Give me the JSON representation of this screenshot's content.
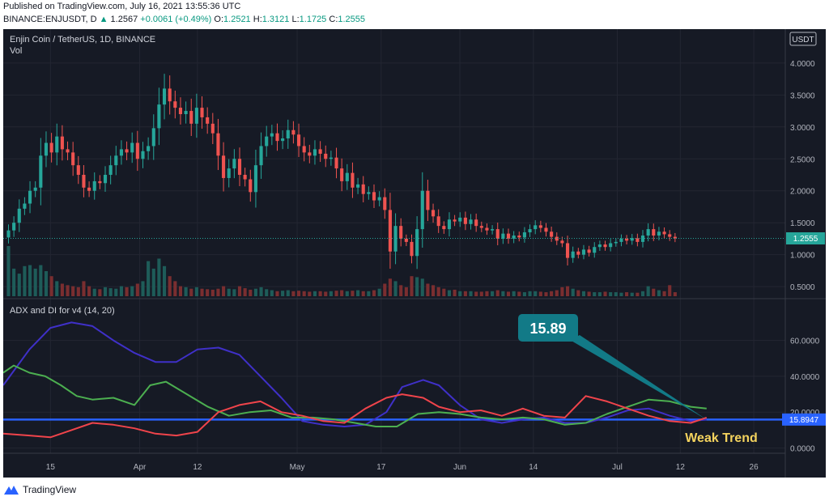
{
  "header": {
    "published": "Published on TradingView.com, July 16, 2021 13:55:36 UTC",
    "symbol": "BINANCE:ENJUSDT, D",
    "last": "1.2567",
    "change": "+0.0061 (+0.49%)",
    "o_label": "O:",
    "o_val": "1.2521",
    "h_label": "H:",
    "h_val": "1.3121",
    "l_label": "L:",
    "l_val": "1.1725",
    "c_label": "C:",
    "c_val": "1.2555"
  },
  "price_pane": {
    "title": "Enjin Coin / TetherUS, 1D, BINANCE",
    "vol_label": "Vol",
    "currency": "USDT",
    "last_price_label": "1.2555"
  },
  "adx_pane": {
    "title": "ADX and DI for v4 (14, 20)",
    "adx_value_label": "15.8947",
    "callout": "15.89",
    "annotation": "Weak Trend"
  },
  "footer": {
    "brand": "TradingView"
  },
  "colors": {
    "background": "#161a25",
    "up": "#26a69a",
    "down": "#ef5350",
    "adx": "#3f30c8",
    "di_plus": "#4caf50",
    "di_minus": "#f0444b",
    "threshold": "#2962ff",
    "callout": "#127a87",
    "annotation": "#f4d35e"
  },
  "chart_data": [
    {
      "type": "candlestick",
      "title": "Enjin Coin / TetherUS, 1D, BINANCE",
      "ylim": [
        0.35,
        4.15
      ],
      "y_ticks": [
        "4.0000",
        "3.5000",
        "3.0000",
        "2.5000",
        "2.0000",
        "1.5000",
        "1.0000",
        "0.5000"
      ],
      "y_tick_values": [
        4.0,
        3.5,
        3.0,
        2.5,
        2.0,
        1.5,
        1.0,
        0.5
      ],
      "x_ticks": [
        "15",
        "Apr",
        "12",
        "May",
        "17",
        "Jun",
        "14",
        "Jul",
        "12",
        "26"
      ],
      "x_tick_days": [
        14,
        31,
        42,
        61,
        77,
        92,
        106,
        122,
        134,
        148
      ],
      "x_range_days": [
        5,
        154
      ],
      "start_date": "2021-03-06",
      "last_price": 1.2555,
      "close": [
        1.38,
        1.5,
        1.72,
        1.8,
        2.0,
        2.05,
        2.55,
        2.75,
        2.6,
        2.85,
        2.65,
        2.6,
        2.4,
        2.25,
        2.05,
        2.0,
        2.15,
        2.12,
        2.25,
        2.4,
        2.55,
        2.65,
        2.6,
        2.75,
        2.5,
        2.62,
        2.7,
        2.98,
        3.35,
        3.6,
        3.4,
        3.3,
        3.2,
        3.25,
        3.05,
        3.3,
        3.15,
        3.05,
        2.9,
        2.55,
        2.2,
        2.35,
        2.5,
        2.25,
        2.18,
        1.98,
        2.4,
        2.7,
        2.85,
        2.9,
        2.78,
        2.82,
        2.95,
        2.88,
        2.7,
        2.6,
        2.55,
        2.65,
        2.58,
        2.5,
        2.52,
        2.35,
        2.15,
        2.28,
        2.05,
        2.1,
        1.95,
        1.98,
        1.85,
        1.9,
        1.7,
        1.05,
        1.45,
        1.25,
        1.2,
        0.98,
        1.4,
        2.0,
        1.7,
        1.6,
        1.45,
        1.4,
        1.55,
        1.52,
        1.58,
        1.48,
        1.55,
        1.45,
        1.42,
        1.38,
        1.4,
        1.25,
        1.33,
        1.25,
        1.3,
        1.27,
        1.35,
        1.4,
        1.46,
        1.42,
        1.36,
        1.28,
        1.22,
        1.18,
        0.95,
        1.05,
        1.0,
        1.08,
        1.03,
        1.12,
        1.16,
        1.12,
        1.18,
        1.2,
        1.25,
        1.22,
        1.26,
        1.2,
        1.3,
        1.4,
        1.3,
        1.36,
        1.32,
        1.28,
        1.2555
      ],
      "volume": [
        1.0,
        0.55,
        0.45,
        0.6,
        0.62,
        0.55,
        0.62,
        0.5,
        0.4,
        0.3,
        0.25,
        0.22,
        0.2,
        0.18,
        0.3,
        0.2,
        0.15,
        0.14,
        0.18,
        0.16,
        0.15,
        0.2,
        0.18,
        0.2,
        0.25,
        0.3,
        0.7,
        0.55,
        0.75,
        0.6,
        0.4,
        0.3,
        0.2,
        0.18,
        0.15,
        0.18,
        0.15,
        0.14,
        0.13,
        0.15,
        0.2,
        0.15,
        0.14,
        0.2,
        0.16,
        0.13,
        0.15,
        0.18,
        0.14,
        0.12,
        0.1,
        0.11,
        0.12,
        0.1,
        0.11,
        0.1,
        0.09,
        0.1,
        0.1,
        0.09,
        0.1,
        0.11,
        0.12,
        0.1,
        0.11,
        0.12,
        0.1,
        0.1,
        0.12,
        0.15,
        0.25,
        0.35,
        0.3,
        0.22,
        0.18,
        0.4,
        0.38,
        0.35,
        0.25,
        0.22,
        0.18,
        0.15,
        0.12,
        0.13,
        0.1,
        0.1,
        0.1,
        0.09,
        0.09,
        0.1,
        0.1,
        0.12,
        0.1,
        0.09,
        0.1,
        0.09,
        0.08,
        0.1,
        0.1,
        0.09,
        0.08,
        0.1,
        0.12,
        0.18,
        0.2,
        0.15,
        0.12,
        0.1,
        0.09,
        0.08,
        0.08,
        0.09,
        0.08,
        0.08,
        0.07,
        0.08,
        0.07,
        0.07,
        0.1,
        0.2,
        0.15,
        0.12,
        0.1,
        0.22,
        0.08
      ]
    },
    {
      "type": "line",
      "title": "ADX and DI for v4 (14, 20)",
      "ylim": [
        -2,
        72
      ],
      "y_ticks": [
        "60.0000",
        "40.0000",
        "20.0000",
        "0.0000"
      ],
      "y_tick_values": [
        60,
        40,
        20,
        0
      ],
      "threshold": 15.8947,
      "x_range_days": [
        5,
        154
      ],
      "series": [
        {
          "name": "ADX",
          "x": [
            5,
            10,
            14,
            18,
            22,
            26,
            30,
            34,
            38,
            42,
            46,
            50,
            54,
            58,
            62,
            66,
            70,
            74,
            78,
            81,
            85,
            88,
            92,
            96,
            100,
            104,
            108,
            112,
            116,
            120,
            124,
            128,
            132,
            136,
            139
          ],
          "y": [
            35,
            55,
            67,
            70,
            68,
            60,
            53,
            48,
            48,
            55,
            56,
            52,
            40,
            28,
            15,
            13,
            12,
            13,
            20,
            34,
            38,
            35,
            24,
            16,
            14,
            16,
            17,
            14,
            14,
            17,
            21,
            22,
            18,
            15,
            15.89
          ]
        },
        {
          "name": "+DI",
          "x": [
            5,
            7,
            10,
            13,
            16,
            19,
            22,
            26,
            30,
            33,
            36,
            40,
            44,
            48,
            52,
            56,
            60,
            64,
            68,
            72,
            76,
            80,
            84,
            88,
            92,
            96,
            100,
            104,
            108,
            112,
            116,
            120,
            124,
            128,
            132,
            136,
            139
          ],
          "y": [
            42,
            46,
            42,
            40,
            35,
            29,
            27,
            28,
            24,
            35,
            37,
            30,
            23,
            18,
            20,
            21,
            17,
            17,
            16,
            14,
            12,
            12,
            19,
            20,
            19,
            17,
            16,
            17,
            16,
            13,
            14,
            19,
            23,
            27,
            26,
            23,
            22
          ]
        },
        {
          "name": "-DI",
          "x": [
            5,
            10,
            14,
            18,
            22,
            26,
            30,
            34,
            38,
            42,
            46,
            50,
            54,
            58,
            62,
            66,
            70,
            74,
            78,
            81,
            85,
            88,
            92,
            96,
            100,
            104,
            108,
            112,
            116,
            120,
            124,
            128,
            132,
            136,
            139
          ],
          "y": [
            8,
            7,
            6,
            10,
            14,
            13,
            11,
            8,
            7,
            9,
            20,
            24,
            26,
            20,
            18,
            15,
            14,
            22,
            28,
            30,
            28,
            23,
            20,
            21,
            18,
            22,
            18,
            17,
            29,
            26,
            22,
            18,
            15,
            14,
            17
          ]
        }
      ]
    }
  ]
}
